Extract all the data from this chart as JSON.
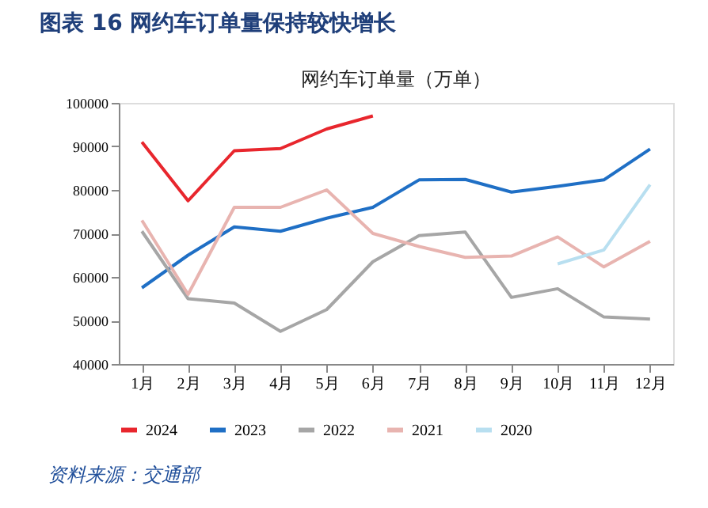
{
  "chart_data": {
    "type": "line",
    "title": "图表 16    网约车订单量保持较快增长",
    "subtitle": "网约车订单量（万单）",
    "categories": [
      "1月",
      "2月",
      "3月",
      "4月",
      "5月",
      "6月",
      "7月",
      "8月",
      "9月",
      "10月",
      "11月",
      "12月"
    ],
    "series": [
      {
        "name": "2024",
        "color": "#e8262d",
        "values": [
          91000,
          77500,
          89000,
          89500,
          94000,
          97000,
          null,
          null,
          null,
          null,
          null,
          null
        ]
      },
      {
        "name": "2023",
        "color": "#1f6fc5",
        "values": [
          57500,
          65000,
          71500,
          70500,
          73500,
          76000,
          82300,
          82400,
          79500,
          80800,
          82300,
          89400
        ]
      },
      {
        "name": "2022",
        "color": "#a6a6a6",
        "values": [
          70500,
          55000,
          54000,
          47500,
          52500,
          63500,
          69500,
          70300,
          55300,
          57300,
          50800,
          50300
        ]
      },
      {
        "name": "2021",
        "color": "#e8b4b0",
        "values": [
          73000,
          56000,
          76000,
          76000,
          80000,
          70000,
          67000,
          64500,
          64800,
          69200,
          62300,
          68200
        ]
      },
      {
        "name": "2020",
        "color": "#b8dff0",
        "values": [
          null,
          null,
          null,
          null,
          null,
          null,
          null,
          null,
          null,
          63000,
          66200,
          81200
        ]
      }
    ],
    "ylim": [
      40000,
      100000
    ],
    "yticks": [
      40000,
      50000,
      60000,
      70000,
      80000,
      90000,
      100000
    ],
    "grid": false,
    "legend": "bottom",
    "line_style": "solid",
    "annotations": [
      "资料来源：交通部"
    ]
  }
}
